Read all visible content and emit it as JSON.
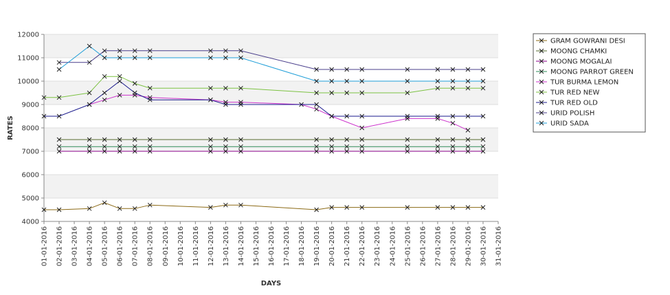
{
  "chart_data": {
    "type": "line",
    "title": "",
    "xlabel": "DAYS",
    "ylabel": "RATES",
    "ylim": [
      4000,
      12000
    ],
    "yticks": [
      4000,
      5000,
      6000,
      7000,
      8000,
      9000,
      10000,
      11000,
      12000
    ],
    "x_ticks": [
      "01-01-2016",
      "02-01-2016",
      "03-01-2016",
      "04-01-2016",
      "05-01-2016",
      "06-01-2016",
      "07-01-2016",
      "08-01-2016",
      "09-01-2016",
      "10-01-2016",
      "11-01-2016",
      "12-01-2016",
      "13-01-2016",
      "14-01-2016",
      "15-01-2016",
      "16-01-2016",
      "17-01-2016",
      "18-01-2016",
      "19-01-2016",
      "20-01-2016",
      "21-01-2016",
      "22-01-2016",
      "23-01-2016",
      "24-01-2016",
      "25-01-2016",
      "26-01-2016",
      "27-01-2016",
      "28-01-2016",
      "29-01-2016",
      "30-01-2016",
      "31-01-2016"
    ],
    "xlim": [
      "01-01-2016",
      "31-01-2016"
    ],
    "grid": "horizontal bands",
    "legend_position": "right",
    "series": [
      {
        "name": "GRAM GOWRANI DESI",
        "color": "#8b6914",
        "points": [
          [
            "01-01-2016",
            4500
          ],
          [
            "02-01-2016",
            4500
          ],
          [
            "04-01-2016",
            4550
          ],
          [
            "05-01-2016",
            4800
          ],
          [
            "06-01-2016",
            4550
          ],
          [
            "07-01-2016",
            4550
          ],
          [
            "08-01-2016",
            4700
          ],
          [
            "12-01-2016",
            4600
          ],
          [
            "13-01-2016",
            4700
          ],
          [
            "14-01-2016",
            4700
          ],
          [
            "19-01-2016",
            4500
          ],
          [
            "20-01-2016",
            4600
          ],
          [
            "21-01-2016",
            4600
          ],
          [
            "22-01-2016",
            4600
          ],
          [
            "25-01-2016",
            4600
          ],
          [
            "27-01-2016",
            4600
          ],
          [
            "28-01-2016",
            4600
          ],
          [
            "29-01-2016",
            4600
          ],
          [
            "30-01-2016",
            4600
          ]
        ]
      },
      {
        "name": "MOONG CHAMKI",
        "color": "#556b2f",
        "points": [
          [
            "02-01-2016",
            7500
          ],
          [
            "04-01-2016",
            7500
          ],
          [
            "05-01-2016",
            7500
          ],
          [
            "06-01-2016",
            7500
          ],
          [
            "07-01-2016",
            7500
          ],
          [
            "08-01-2016",
            7500
          ],
          [
            "12-01-2016",
            7500
          ],
          [
            "13-01-2016",
            7500
          ],
          [
            "14-01-2016",
            7500
          ],
          [
            "19-01-2016",
            7500
          ],
          [
            "20-01-2016",
            7500
          ],
          [
            "21-01-2016",
            7500
          ],
          [
            "22-01-2016",
            7500
          ],
          [
            "25-01-2016",
            7500
          ],
          [
            "27-01-2016",
            7500
          ],
          [
            "28-01-2016",
            7500
          ],
          [
            "29-01-2016",
            7500
          ],
          [
            "30-01-2016",
            7500
          ]
        ]
      },
      {
        "name": "MOONG MOGALAI",
        "color": "#8b008b",
        "points": [
          [
            "02-01-2016",
            7000
          ],
          [
            "04-01-2016",
            7000
          ],
          [
            "05-01-2016",
            7000
          ],
          [
            "06-01-2016",
            7000
          ],
          [
            "07-01-2016",
            7000
          ],
          [
            "08-01-2016",
            7000
          ],
          [
            "12-01-2016",
            7000
          ],
          [
            "13-01-2016",
            7000
          ],
          [
            "14-01-2016",
            7000
          ],
          [
            "19-01-2016",
            7000
          ],
          [
            "20-01-2016",
            7000
          ],
          [
            "21-01-2016",
            7000
          ],
          [
            "22-01-2016",
            7000
          ],
          [
            "25-01-2016",
            7000
          ],
          [
            "27-01-2016",
            7000
          ],
          [
            "28-01-2016",
            7000
          ],
          [
            "29-01-2016",
            7000
          ],
          [
            "30-01-2016",
            7000
          ]
        ]
      },
      {
        "name": "MOONG PARROT GREEN",
        "color": "#2e8b57",
        "points": [
          [
            "02-01-2016",
            7200
          ],
          [
            "04-01-2016",
            7200
          ],
          [
            "05-01-2016",
            7200
          ],
          [
            "06-01-2016",
            7200
          ],
          [
            "07-01-2016",
            7200
          ],
          [
            "08-01-2016",
            7200
          ],
          [
            "12-01-2016",
            7200
          ],
          [
            "13-01-2016",
            7200
          ],
          [
            "14-01-2016",
            7200
          ],
          [
            "19-01-2016",
            7200
          ],
          [
            "20-01-2016",
            7200
          ],
          [
            "21-01-2016",
            7200
          ],
          [
            "22-01-2016",
            7200
          ],
          [
            "25-01-2016",
            7200
          ],
          [
            "27-01-2016",
            7200
          ],
          [
            "28-01-2016",
            7200
          ],
          [
            "29-01-2016",
            7200
          ],
          [
            "30-01-2016",
            7200
          ]
        ]
      },
      {
        "name": "TUR BURMA LEMON",
        "color": "#cc33cc",
        "points": [
          [
            "04-01-2016",
            9000
          ],
          [
            "05-01-2016",
            9200
          ],
          [
            "06-01-2016",
            9400
          ],
          [
            "07-01-2016",
            9400
          ],
          [
            "08-01-2016",
            9300
          ],
          [
            "12-01-2016",
            9200
          ],
          [
            "13-01-2016",
            9100
          ],
          [
            "14-01-2016",
            9100
          ],
          [
            "18-01-2016",
            9000
          ],
          [
            "19-01-2016",
            8800
          ],
          [
            "20-01-2016",
            8500
          ],
          [
            "22-01-2016",
            8000
          ],
          [
            "25-01-2016",
            8400
          ],
          [
            "27-01-2016",
            8400
          ],
          [
            "28-01-2016",
            8200
          ],
          [
            "29-01-2016",
            7900
          ]
        ]
      },
      {
        "name": "TUR RED NEW",
        "color": "#7cc242",
        "points": [
          [
            "01-01-2016",
            9300
          ],
          [
            "02-01-2016",
            9300
          ],
          [
            "04-01-2016",
            9500
          ],
          [
            "05-01-2016",
            10200
          ],
          [
            "06-01-2016",
            10200
          ],
          [
            "07-01-2016",
            9900
          ],
          [
            "08-01-2016",
            9700
          ],
          [
            "12-01-2016",
            9700
          ],
          [
            "13-01-2016",
            9700
          ],
          [
            "14-01-2016",
            9700
          ],
          [
            "19-01-2016",
            9500
          ],
          [
            "20-01-2016",
            9500
          ],
          [
            "21-01-2016",
            9500
          ],
          [
            "22-01-2016",
            9500
          ],
          [
            "25-01-2016",
            9500
          ],
          [
            "27-01-2016",
            9700
          ],
          [
            "28-01-2016",
            9700
          ],
          [
            "29-01-2016",
            9700
          ],
          [
            "30-01-2016",
            9700
          ]
        ]
      },
      {
        "name": "TUR RED OLD",
        "color": "#1a1a8c",
        "points": [
          [
            "01-01-2016",
            8500
          ],
          [
            "02-01-2016",
            8500
          ],
          [
            "04-01-2016",
            9000
          ],
          [
            "05-01-2016",
            9500
          ],
          [
            "06-01-2016",
            10000
          ],
          [
            "07-01-2016",
            9500
          ],
          [
            "08-01-2016",
            9200
          ],
          [
            "12-01-2016",
            9200
          ],
          [
            "13-01-2016",
            9000
          ],
          [
            "14-01-2016",
            9000
          ],
          [
            "19-01-2016",
            9000
          ],
          [
            "20-01-2016",
            8500
          ],
          [
            "21-01-2016",
            8500
          ],
          [
            "22-01-2016",
            8500
          ],
          [
            "25-01-2016",
            8500
          ],
          [
            "27-01-2016",
            8500
          ],
          [
            "28-01-2016",
            8500
          ],
          [
            "29-01-2016",
            8500
          ],
          [
            "30-01-2016",
            8500
          ]
        ]
      },
      {
        "name": "URID POLISH",
        "color": "#483d8b",
        "points": [
          [
            "02-01-2016",
            10800
          ],
          [
            "04-01-2016",
            10800
          ],
          [
            "05-01-2016",
            11300
          ],
          [
            "06-01-2016",
            11300
          ],
          [
            "07-01-2016",
            11300
          ],
          [
            "08-01-2016",
            11300
          ],
          [
            "12-01-2016",
            11300
          ],
          [
            "13-01-2016",
            11300
          ],
          [
            "14-01-2016",
            11300
          ],
          [
            "19-01-2016",
            10500
          ],
          [
            "20-01-2016",
            10500
          ],
          [
            "21-01-2016",
            10500
          ],
          [
            "22-01-2016",
            10500
          ],
          [
            "25-01-2016",
            10500
          ],
          [
            "27-01-2016",
            10500
          ],
          [
            "28-01-2016",
            10500
          ],
          [
            "29-01-2016",
            10500
          ],
          [
            "30-01-2016",
            10500
          ]
        ]
      },
      {
        "name": "URID SADA",
        "color": "#1e9ed8",
        "points": [
          [
            "02-01-2016",
            10500
          ],
          [
            "04-01-2016",
            11500
          ],
          [
            "05-01-2016",
            11000
          ],
          [
            "06-01-2016",
            11000
          ],
          [
            "07-01-2016",
            11000
          ],
          [
            "08-01-2016",
            11000
          ],
          [
            "12-01-2016",
            11000
          ],
          [
            "13-01-2016",
            11000
          ],
          [
            "14-01-2016",
            11000
          ],
          [
            "19-01-2016",
            10000
          ],
          [
            "20-01-2016",
            10000
          ],
          [
            "21-01-2016",
            10000
          ],
          [
            "22-01-2016",
            10000
          ],
          [
            "25-01-2016",
            10000
          ],
          [
            "27-01-2016",
            10000
          ],
          [
            "28-01-2016",
            10000
          ],
          [
            "29-01-2016",
            10000
          ],
          [
            "30-01-2016",
            10000
          ]
        ]
      }
    ]
  }
}
